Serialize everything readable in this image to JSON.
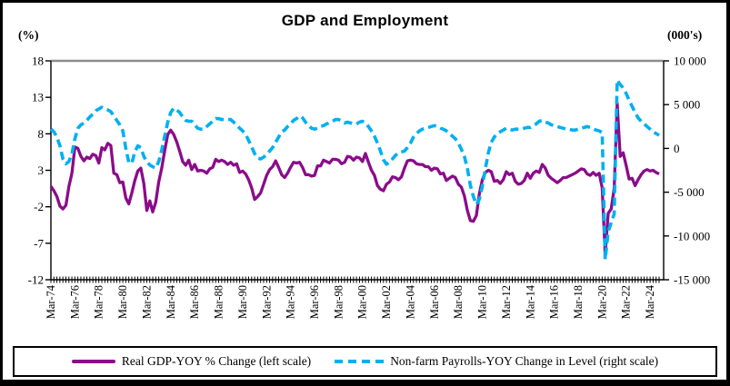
{
  "title": "GDP and Employment",
  "left_axis_unit": "(%)",
  "right_axis_unit": "(000's)",
  "legend": {
    "gdp_label": "Real GDP-YOY % Change (left scale)",
    "payrolls_label": "Non-farm Payrolls-YOY Change in Level (right scale)"
  },
  "chart_data": {
    "type": "line",
    "title": "GDP and Employment",
    "frequency": "quarterly",
    "x_start": "Mar-74",
    "x_end": "Dec-24",
    "x_label_every_n_points": 8,
    "x_tick_labels": [
      "Mar-74",
      "Mar-76",
      "Mar-78",
      "Mar-80",
      "Mar-82",
      "Mar-84",
      "Mar-86",
      "Mar-88",
      "Mar-90",
      "Mar-92",
      "Mar-94",
      "Mar-96",
      "Mar-98",
      "Mar-00",
      "Mar-02",
      "Mar-04",
      "Mar-06",
      "Mar-08",
      "Mar-10",
      "Mar-12",
      "Mar-14",
      "Mar-16",
      "Mar-18",
      "Mar-20",
      "Mar-22",
      "Mar-24"
    ],
    "left_axis": {
      "unit": "(%)",
      "min": -12,
      "max": 18,
      "tick_values": [
        18,
        13,
        8,
        3,
        -2,
        -7,
        -12
      ],
      "tick_labels": [
        "18",
        "13",
        "8",
        "3",
        "-2",
        "-7",
        "-12"
      ]
    },
    "right_axis": {
      "unit": "(000's)",
      "min": -15000,
      "max": 10000,
      "tick_values": [
        10000,
        5000,
        0,
        -5000,
        -10000,
        -15000
      ],
      "tick_labels": [
        "10 000",
        "5 000",
        "0",
        "-5 000",
        "-10 000",
        "-15 000"
      ]
    },
    "colors": {
      "gdp_line": "#8A0C8A",
      "payrolls_line": "#00B0F0",
      "top_gridline": "#8C8C8C",
      "axis": "#000000"
    },
    "legend_position": "bottom",
    "series": [
      {
        "name": "Real GDP-YOY % Change (left scale)",
        "axis": "left",
        "style": "solid",
        "color": "#8A0C8A",
        "values": [
          0.8,
          0.2,
          -0.6,
          -1.9,
          -2.3,
          -1.8,
          0.8,
          2.6,
          6.2,
          6.0,
          4.9,
          4.3,
          4.8,
          4.6,
          5.2,
          5.0,
          4.0,
          6.1,
          5.8,
          6.7,
          6.4,
          2.6,
          2.4,
          1.3,
          1.4,
          -0.8,
          -1.6,
          -0.1,
          1.6,
          2.9,
          3.3,
          1.2,
          -2.5,
          -1.2,
          -2.7,
          -1.4,
          1.4,
          3.3,
          5.7,
          7.9,
          8.5,
          7.9,
          6.9,
          5.6,
          4.2,
          3.7,
          4.4,
          3.1,
          3.8,
          2.9,
          3.0,
          2.9,
          2.6,
          3.2,
          3.4,
          4.5,
          4.2,
          4.4,
          4.2,
          3.8,
          4.1,
          3.7,
          3.9,
          2.7,
          2.9,
          2.5,
          1.7,
          0.6,
          -1.0,
          -0.6,
          -0.1,
          1.1,
          2.3,
          3.1,
          3.5,
          4.3,
          3.4,
          2.4,
          2.0,
          2.6,
          3.4,
          4.1,
          4.0,
          4.1,
          3.4,
          2.4,
          2.4,
          2.2,
          2.3,
          3.6,
          3.6,
          4.4,
          4.2,
          4.0,
          4.5,
          4.5,
          4.4,
          3.9,
          4.1,
          4.9,
          4.8,
          4.4,
          4.8,
          4.7,
          4.2,
          5.3,
          4.1,
          3.0,
          2.3,
          0.9,
          0.4,
          0.2,
          1.1,
          1.4,
          2.1,
          2.0,
          1.7,
          2.1,
          3.3,
          4.3,
          4.4,
          4.3,
          3.9,
          3.8,
          3.8,
          3.5,
          3.5,
          3.0,
          3.3,
          3.2,
          2.5,
          2.6,
          1.6,
          1.9,
          2.2,
          2.0,
          1.1,
          0.7,
          -0.5,
          -2.5,
          -3.9,
          -4.0,
          -3.2,
          -0.2,
          1.7,
          2.7,
          3.0,
          2.8,
          1.5,
          1.6,
          1.2,
          1.7,
          2.8,
          2.4,
          2.6,
          1.5,
          1.1,
          1.2,
          1.6,
          2.6,
          1.9,
          2.6,
          2.9,
          2.7,
          3.8,
          3.3,
          2.3,
          1.9,
          1.6,
          1.3,
          1.6,
          2.0,
          2.0,
          2.2,
          2.4,
          2.6,
          2.9,
          3.2,
          3.1,
          2.5,
          2.3,
          2.7,
          2.3,
          2.6,
          0.6,
          -8.5,
          -2.9,
          -2.3,
          0.5,
          12.2,
          4.9,
          5.4,
          3.7,
          1.8,
          1.9,
          0.9,
          1.7,
          2.4,
          2.9,
          3.1,
          2.9,
          3.0,
          2.7,
          2.5
        ]
      },
      {
        "name": "Non-farm Payrolls-YOY Change in Level (right scale)",
        "axis": "right",
        "style": "dashed",
        "color": "#00B0F0",
        "values": [
          2200,
          1900,
          1300,
          300,
          -1200,
          -1750,
          -1500,
          -600,
          1100,
          2300,
          2700,
          2900,
          3200,
          3600,
          3900,
          4300,
          4500,
          4700,
          4500,
          4400,
          4200,
          3700,
          3200,
          2700,
          2000,
          0,
          -1600,
          -1700,
          -400,
          300,
          100,
          -900,
          -1500,
          -1900,
          -2100,
          -2250,
          -1500,
          -200,
          1400,
          3000,
          4100,
          4600,
          4400,
          4100,
          3600,
          3200,
          3100,
          3100,
          2700,
          2300,
          2200,
          2200,
          2500,
          2800,
          3100,
          3400,
          3400,
          3300,
          3300,
          3300,
          3300,
          3000,
          2700,
          2300,
          2000,
          1600,
          900,
          200,
          -600,
          -1100,
          -1200,
          -1000,
          -700,
          -300,
          100,
          700,
          1300,
          1900,
          2100,
          2500,
          2800,
          3200,
          3400,
          3700,
          3500,
          3000,
          2600,
          2300,
          2200,
          2300,
          2500,
          2600,
          2800,
          2900,
          3100,
          3300,
          3300,
          3100,
          2900,
          3000,
          2900,
          2800,
          2800,
          3000,
          3100,
          2900,
          2500,
          2000,
          1400,
          600,
          -300,
          -1300,
          -1800,
          -1600,
          -1200,
          -800,
          -500,
          -400,
          -300,
          100,
          600,
          1300,
          1700,
          2000,
          2200,
          2300,
          2400,
          2500,
          2600,
          2500,
          2300,
          2200,
          2000,
          1700,
          1400,
          1100,
          600,
          -100,
          -900,
          -2300,
          -4200,
          -5500,
          -6400,
          -5800,
          -4300,
          -2300,
          -500,
          700,
          1300,
          1700,
          1900,
          2100,
          2300,
          2200,
          2100,
          2200,
          2200,
          2200,
          2300,
          2400,
          2400,
          2600,
          2800,
          3100,
          3200,
          3000,
          2900,
          2700,
          2600,
          2500,
          2400,
          2300,
          2200,
          2200,
          2100,
          2100,
          2200,
          2300,
          2400,
          2500,
          2400,
          2200,
          2100,
          2000,
          1800,
          -12700,
          -9500,
          -8500,
          -7500,
          7800,
          7300,
          6900,
          6300,
          5500,
          4800,
          4100,
          3500,
          3100,
          2800,
          2500,
          2200,
          1900,
          1700,
          1500
        ]
      }
    ]
  }
}
